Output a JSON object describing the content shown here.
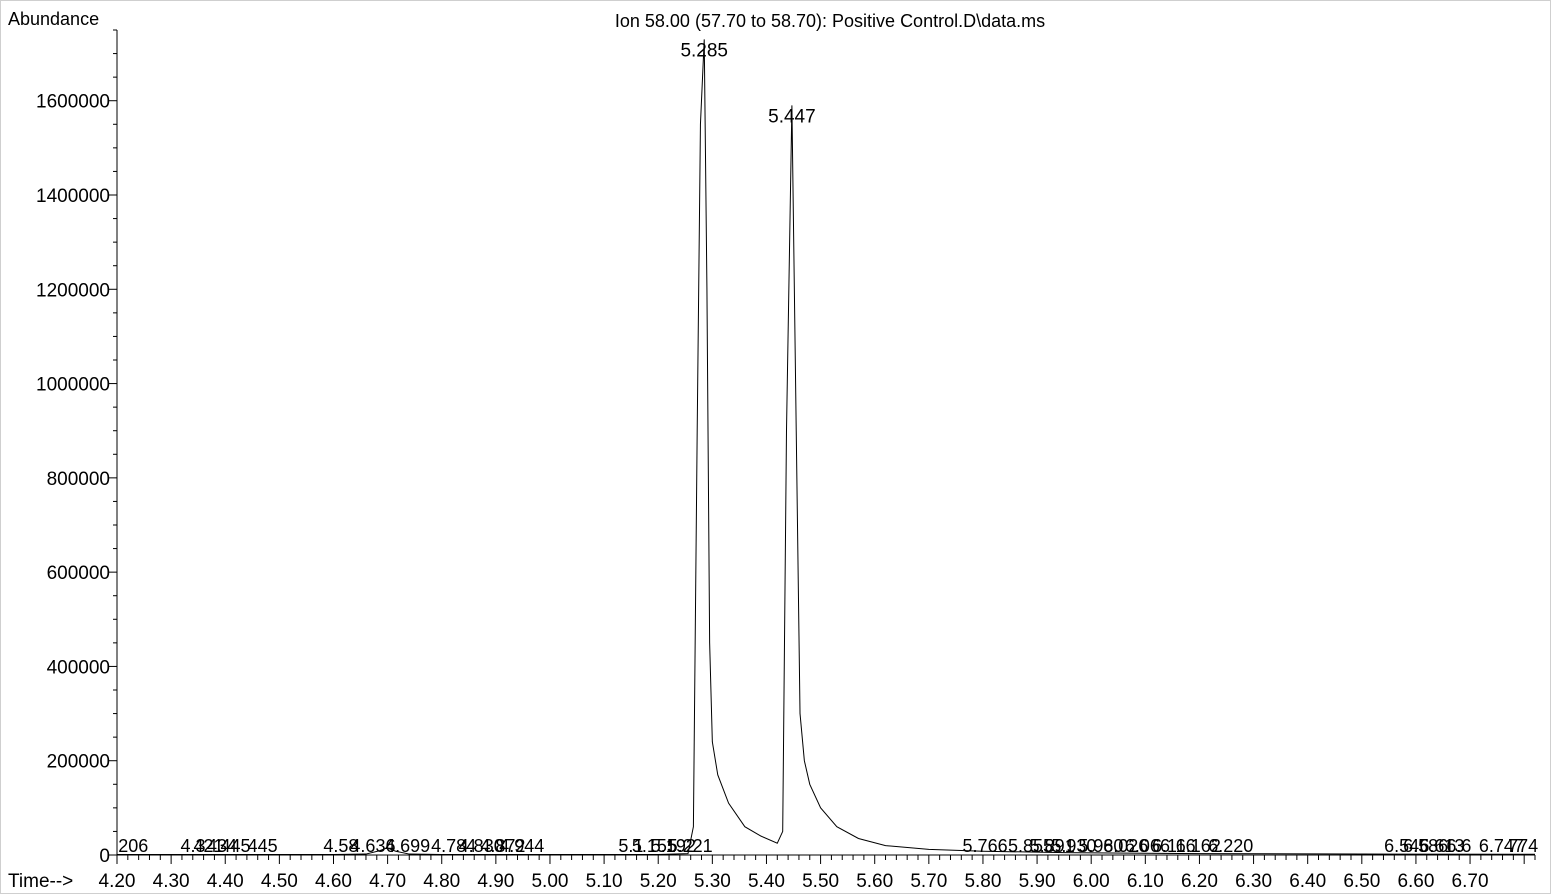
{
  "chart_data": {
    "type": "line",
    "title": "Ion  58.00 (57.70 to 58.70): Positive Control.D\\data.ms",
    "ylabel": "Abundance",
    "xlabel": "Time-->",
    "xlim": [
      4.2,
      6.82
    ],
    "ylim": [
      0,
      1750000
    ],
    "x_ticks": [
      4.2,
      4.3,
      4.4,
      4.5,
      4.6,
      4.7,
      4.8,
      4.9,
      5.0,
      5.1,
      5.2,
      5.3,
      5.4,
      5.5,
      5.6,
      5.7,
      5.8,
      5.9,
      6.0,
      6.1,
      6.2,
      6.3,
      6.4,
      6.5,
      6.6,
      6.7
    ],
    "x_tick_labels": [
      "4.20",
      "4.30",
      "4.40",
      "4.50",
      "4.60",
      "4.70",
      "4.80",
      "4.90",
      "5.00",
      "5.10",
      "5.20",
      "5.30",
      "5.40",
      "5.50",
      "5.60",
      "5.70",
      "5.80",
      "5.90",
      "6.00",
      "6.10",
      "6.20",
      "6.30",
      "6.40",
      "6.50",
      "6.60",
      "6.70"
    ],
    "y_ticks": [
      0,
      200000,
      400000,
      600000,
      800000,
      1000000,
      1200000,
      1400000,
      1600000
    ],
    "y_tick_labels": [
      "0",
      "200000",
      "400000",
      "600000",
      "800000",
      "1000000",
      "1200000",
      "1400000",
      "1600000"
    ],
    "series": [
      {
        "x": [
          4.2,
          4.6,
          4.66,
          4.685,
          4.699,
          4.715,
          4.74,
          4.8,
          5.2,
          5.255,
          5.265,
          5.272,
          5.278,
          5.285,
          5.29,
          5.295,
          5.3,
          5.31,
          5.33,
          5.36,
          5.39,
          5.42,
          5.43,
          5.437,
          5.447,
          5.455,
          5.462,
          5.47,
          5.48,
          5.5,
          5.53,
          5.57,
          5.62,
          5.7,
          5.8,
          5.95,
          6.2,
          6.5,
          6.82
        ],
        "y": [
          1000,
          1000,
          2000,
          9000,
          15000,
          8000,
          2000,
          1000,
          1000,
          3000,
          60000,
          900000,
          1550000,
          1730000,
          1200000,
          450000,
          240000,
          170000,
          110000,
          60000,
          40000,
          25000,
          50000,
          900000,
          1590000,
          900000,
          300000,
          200000,
          150000,
          100000,
          60000,
          35000,
          20000,
          12000,
          8000,
          5000,
          3000,
          2000,
          1500
        ]
      }
    ],
    "peak_labels": [
      {
        "x": 5.285,
        "y": 1730000,
        "text": "5.285"
      },
      {
        "x": 5.447,
        "y": 1590000,
        "text": "5.447"
      }
    ],
    "baseline_labels": [
      {
        "x": 4.206,
        "text": "206"
      },
      {
        "x": 4.321,
        "text": "4.3"
      },
      {
        "x": 4.345,
        "text": "421"
      },
      {
        "x": 4.37,
        "text": "434"
      },
      {
        "x": 4.395,
        "text": "445"
      },
      {
        "x": 4.445,
        "text": "445"
      },
      {
        "x": 4.585,
        "text": "4.58"
      },
      {
        "x": 4.635,
        "text": "4.636"
      },
      {
        "x": 4.699,
        "text": "4.699"
      },
      {
        "x": 4.784,
        "text": "4.784"
      },
      {
        "x": 4.835,
        "text": "4.830"
      },
      {
        "x": 4.875,
        "text": "4.872"
      },
      {
        "x": 4.91,
        "text": "4.944"
      },
      {
        "x": 5.13,
        "text": "5.1"
      },
      {
        "x": 5.155,
        "text": "5.155"
      },
      {
        "x": 5.19,
        "text": "5.192"
      },
      {
        "x": 5.221,
        "text": "5.221"
      },
      {
        "x": 5.766,
        "text": "5.766"
      },
      {
        "x": 5.85,
        "text": "5.855"
      },
      {
        "x": 5.89,
        "text": "5.891"
      },
      {
        "x": 5.93,
        "text": "5.930"
      },
      {
        "x": 5.98,
        "text": "5.980"
      },
      {
        "x": 6.026,
        "text": "6.026"
      },
      {
        "x": 6.066,
        "text": "6.066"
      },
      {
        "x": 6.116,
        "text": "6.116"
      },
      {
        "x": 6.16,
        "text": "6.162"
      },
      {
        "x": 6.22,
        "text": "6.220"
      },
      {
        "x": 6.545,
        "text": "6.545"
      },
      {
        "x": 6.58,
        "text": "6.586"
      },
      {
        "x": 6.61,
        "text": "6.613"
      },
      {
        "x": 6.66,
        "text": "6.6"
      },
      {
        "x": 6.72,
        "text": "6.747"
      },
      {
        "x": 6.774,
        "text": "774"
      }
    ],
    "grid": false,
    "legend": "none"
  }
}
